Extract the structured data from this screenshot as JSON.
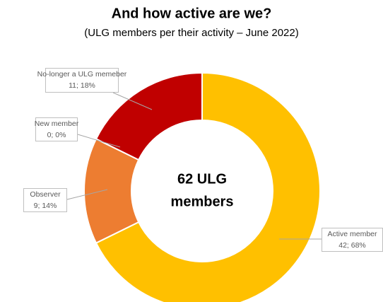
{
  "chart_data": {
    "type": "donut",
    "title": "And how active are we?",
    "subtitle": "(ULG members per their activity – June 2022)",
    "center_label": [
      "62 ULG",
      "members"
    ],
    "categories": [
      "Active member",
      "Observer",
      "New member",
      "No-longer a ULG memeber"
    ],
    "values": [
      42,
      9,
      0,
      11
    ],
    "value_labels": [
      "42; 68%",
      "9; 14%",
      "0; 0%",
      "11; 18%"
    ],
    "colors": [
      "#FFC000",
      "#ED7D31",
      "#A5A5A5",
      "#C00000"
    ]
  }
}
